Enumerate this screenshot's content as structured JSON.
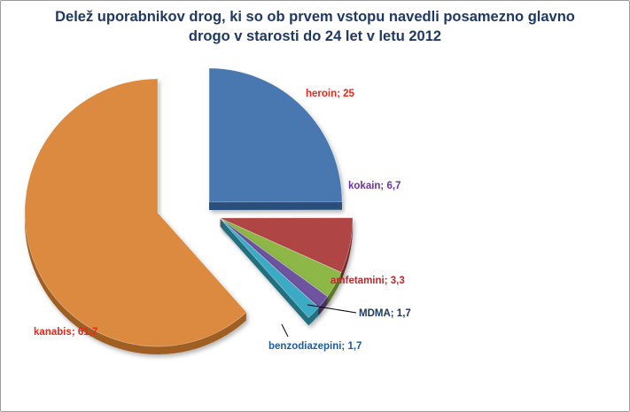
{
  "chart_data": {
    "type": "pie",
    "title_line1": "Delež uporabnikov drog, ki so ob prvem vstopu navedli posamezno glavno",
    "title_line2": "drogo v starosti do 24 let v letu 2012",
    "slices": [
      {
        "name": "heroin",
        "label": "heroin; 25",
        "value": 25,
        "color": "#4a78b0",
        "dark": "#2c4f7c",
        "label_color": "#e8271b"
      },
      {
        "name": "kokain",
        "label": "kokain; 6,7",
        "value": 6.7,
        "color": "#b04545",
        "dark": "#732a2a",
        "label_color": "#7030a0"
      },
      {
        "name": "amfetamini",
        "label": "amfetamini; 3,3",
        "value": 3.3,
        "color": "#8db846",
        "dark": "#5c7a2a",
        "label_color": "#c0282c"
      },
      {
        "name": "MDMA",
        "label": "MDMA; 1,7",
        "value": 1.7,
        "color": "#6e52a0",
        "dark": "#463366",
        "label_color": "#1f3864"
      },
      {
        "name": "benzodiazepini",
        "label": "benzodiazepini; 1,7",
        "value": 1.7,
        "color": "#3aaac4",
        "dark": "#21707f",
        "label_color": "#1f5aa0"
      },
      {
        "name": "kanabis",
        "label": "kanabis; 61,7",
        "value": 61.7,
        "color": "#dc8a40",
        "dark": "#a05f22",
        "label_color": "#e8271b"
      }
    ]
  }
}
